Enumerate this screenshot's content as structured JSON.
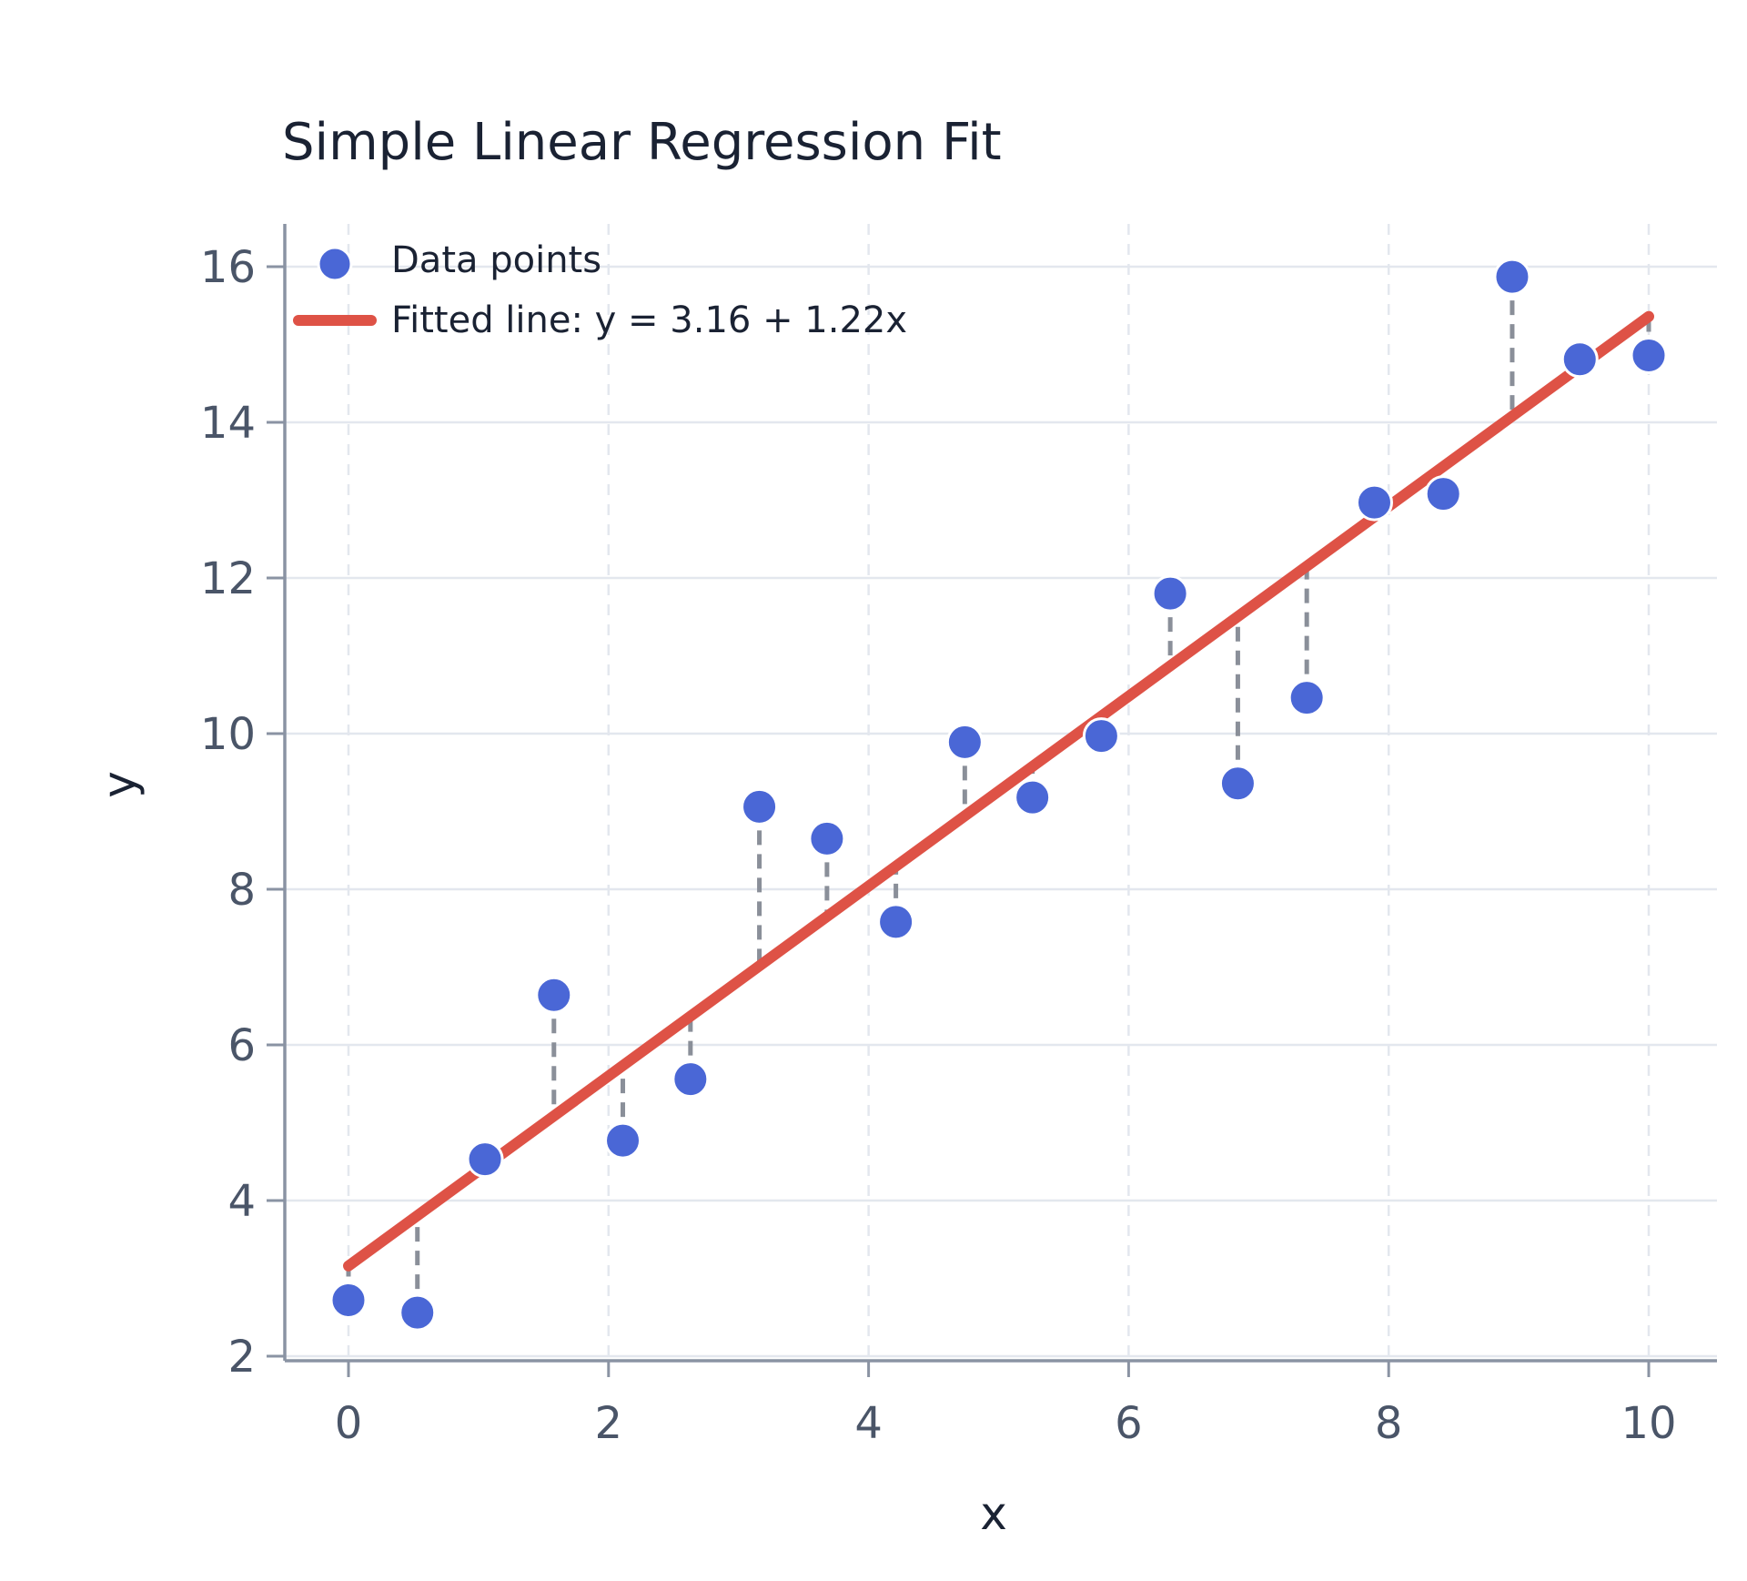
{
  "chart_data": {
    "type": "scatter",
    "title": "Simple Linear Regression Fit",
    "xlabel": "x",
    "ylabel": "y",
    "xlim": [
      -0.5,
      10.5
    ],
    "ylim": [
      2,
      16.5
    ],
    "x_ticks": [
      0,
      2,
      4,
      6,
      8,
      10
    ],
    "y_ticks": [
      2,
      4,
      6,
      8,
      10,
      12,
      14,
      16
    ],
    "grid": true,
    "legend_position": "top-left",
    "colors": {
      "points": "#4a67d6",
      "line": "#de5246",
      "residual": "#8a8f99",
      "grid": "#e3e7ee",
      "axis": "#8a93a3"
    },
    "series": [
      {
        "name": "Data points",
        "kind": "scatter",
        "x": [
          0,
          0.53,
          1.05,
          1.58,
          2.11,
          2.63,
          3.16,
          3.68,
          4.21,
          4.74,
          5.26,
          5.79,
          6.32,
          6.84,
          7.37,
          7.89,
          8.42,
          8.95,
          9.47,
          10
        ],
        "y": [
          2.72,
          2.56,
          4.53,
          6.64,
          4.77,
          5.56,
          9.06,
          8.65,
          7.58,
          9.89,
          9.18,
          9.97,
          11.8,
          9.36,
          10.46,
          12.97,
          13.08,
          15.87,
          14.81,
          14.86
        ]
      },
      {
        "name": "Fitted line: y = 3.16 + 1.22x",
        "kind": "line",
        "intercept": 3.16,
        "slope": 1.22,
        "x_range": [
          0,
          10
        ]
      }
    ]
  }
}
